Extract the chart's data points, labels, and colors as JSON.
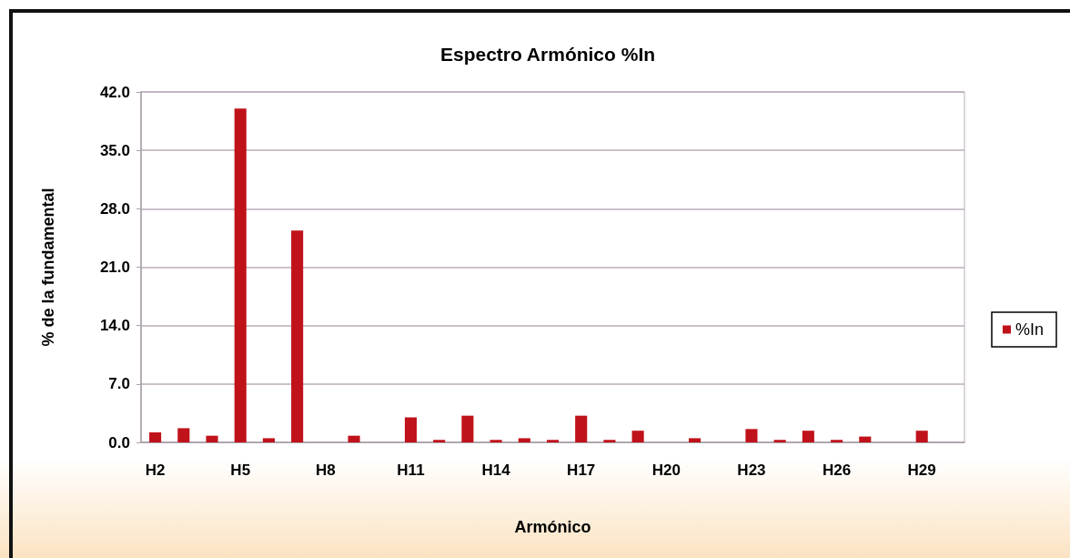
{
  "chart_data": {
    "type": "bar",
    "title": "Espectro Armónico %In",
    "xlabel": "Armónico",
    "ylabel": "% de la fundamental",
    "categories": [
      "H2",
      null,
      null,
      "H5",
      null,
      null,
      "H8",
      null,
      null,
      "H11",
      null,
      null,
      "H14",
      null,
      null,
      "H17",
      null,
      null,
      "H20",
      null,
      null,
      "H23",
      null,
      null,
      "H26",
      null,
      null,
      "H29",
      null
    ],
    "series": [
      {
        "name": "%In",
        "color": "#c0121a",
        "values": [
          1.2,
          1.7,
          0.8,
          40.0,
          0.5,
          25.4,
          0,
          0.8,
          0,
          3.0,
          0.3,
          3.2,
          0.3,
          0.5,
          0.3,
          3.2,
          0.3,
          1.4,
          0,
          0.5,
          0,
          1.6,
          0.3,
          1.4,
          0.3,
          0.7,
          0,
          1.4,
          0
        ]
      }
    ],
    "ylim": [
      0,
      42
    ],
    "yticks": [
      {
        "value": 0,
        "label": "0.0"
      },
      {
        "value": 7,
        "label": "7.0"
      },
      {
        "value": 14,
        "label": "14.0"
      },
      {
        "value": 21,
        "label": "21.0"
      },
      {
        "value": 28,
        "label": "28.0"
      },
      {
        "value": 35,
        "label": "35.0"
      },
      {
        "value": 42,
        "label": "42.0"
      }
    ],
    "grid": "y",
    "legend": "right"
  }
}
